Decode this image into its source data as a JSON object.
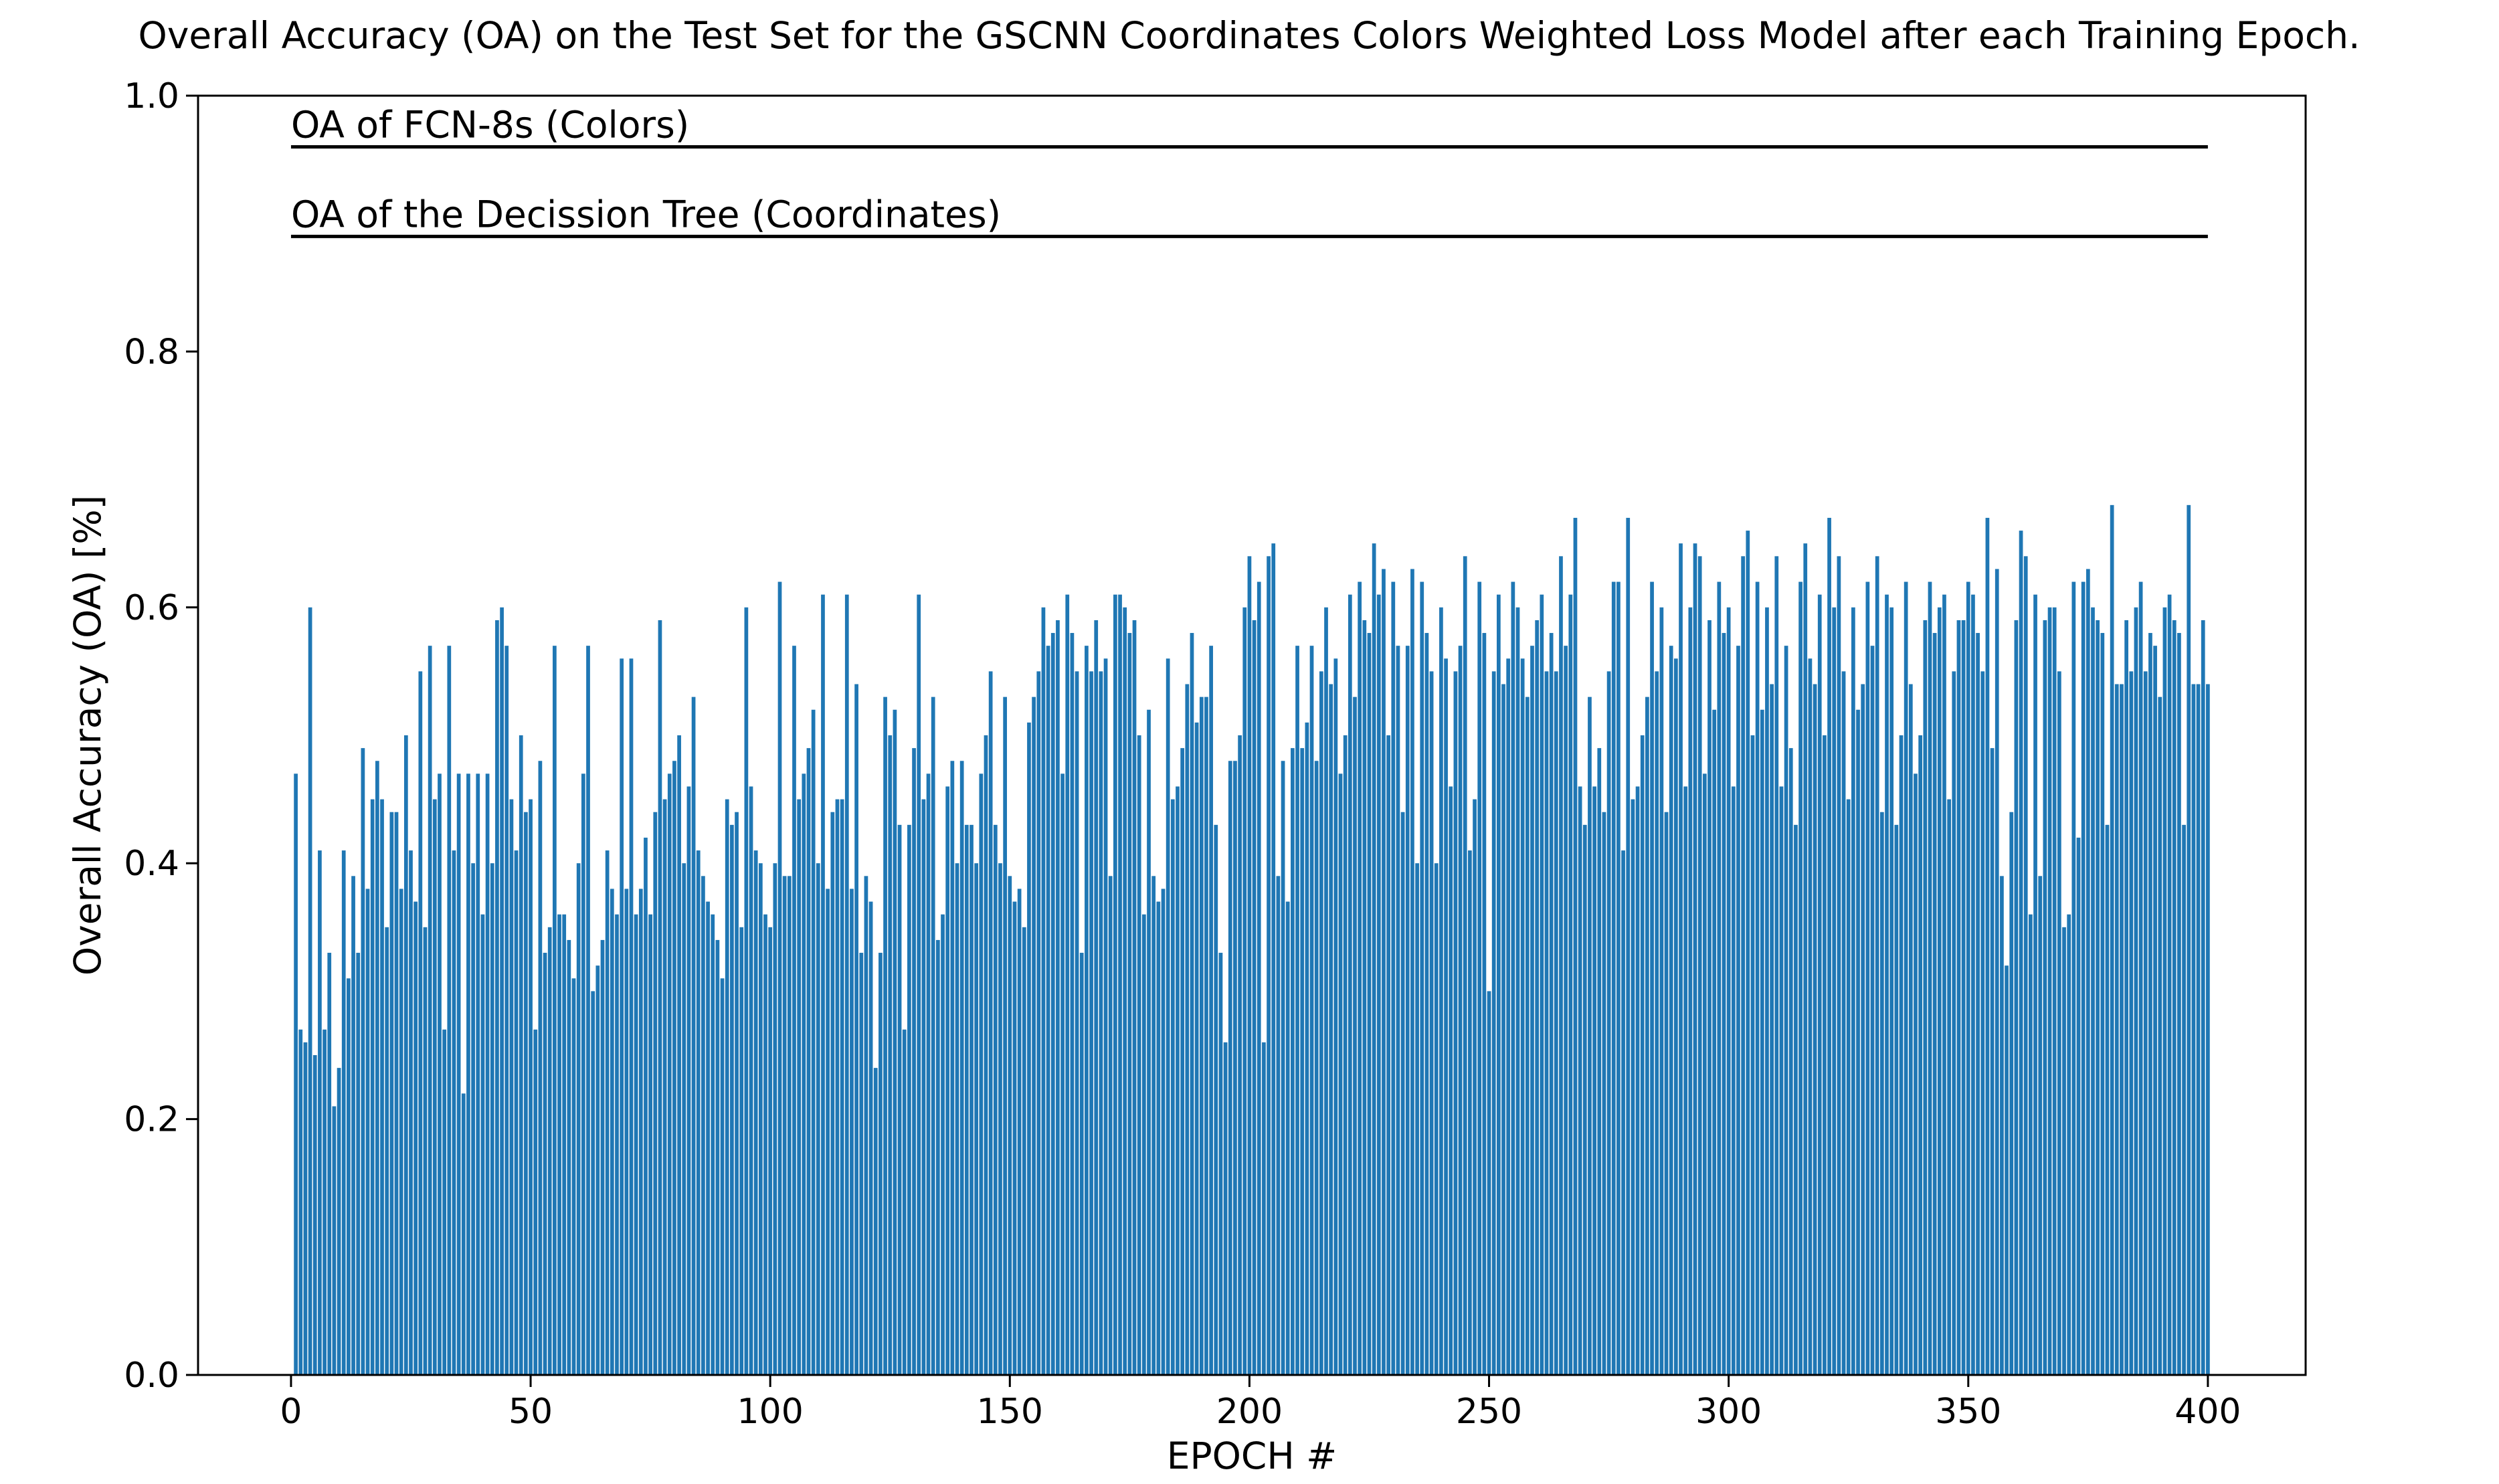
{
  "chart_data": {
    "type": "bar",
    "title": "Overall Accuracy (OA) on the Test Set for the GSCNN Coordinates Colors Weighted Loss Model after each Training Epoch.",
    "xlabel": "EPOCH #",
    "ylabel": "Overall Accuracy (OA) [%]",
    "color": "#1f77b4",
    "xlim": [
      -19.4,
      420.4
    ],
    "xticks": [
      0,
      50,
      100,
      150,
      200,
      250,
      300,
      350,
      400
    ],
    "ylim": [
      0,
      1
    ],
    "yticks": [
      {
        "value": 0,
        "label": "0.0"
      },
      0.2,
      0.4,
      0.6,
      0.8,
      {
        "value": 1,
        "label": "1.0"
      }
    ],
    "hlines": [
      {
        "y": 0.96,
        "xmin": 0,
        "xmax": 400,
        "label": "OA of FCN-8s (Colors)"
      },
      {
        "y": 0.89,
        "xmin": 0,
        "xmax": 400,
        "label": "OA of the Decission Tree (Coordinates)"
      }
    ],
    "x": [
      1,
      2,
      3,
      4,
      5,
      6,
      7,
      8,
      9,
      10,
      11,
      12,
      13,
      14,
      15,
      16,
      17,
      18,
      19,
      20,
      21,
      22,
      23,
      24,
      25,
      26,
      27,
      28,
      29,
      30,
      31,
      32,
      33,
      34,
      35,
      36,
      37,
      38,
      39,
      40,
      41,
      42,
      43,
      44,
      45,
      46,
      47,
      48,
      49,
      50,
      51,
      52,
      53,
      54,
      55,
      56,
      57,
      58,
      59,
      60,
      61,
      62,
      63,
      64,
      65,
      66,
      67,
      68,
      69,
      70,
      71,
      72,
      73,
      74,
      75,
      76,
      77,
      78,
      79,
      80,
      81,
      82,
      83,
      84,
      85,
      86,
      87,
      88,
      89,
      90,
      91,
      92,
      93,
      94,
      95,
      96,
      97,
      98,
      99,
      100,
      101,
      102,
      103,
      104,
      105,
      106,
      107,
      108,
      109,
      110,
      111,
      112,
      113,
      114,
      115,
      116,
      117,
      118,
      119,
      120,
      121,
      122,
      123,
      124,
      125,
      126,
      127,
      128,
      129,
      130,
      131,
      132,
      133,
      134,
      135,
      136,
      137,
      138,
      139,
      140,
      141,
      142,
      143,
      144,
      145,
      146,
      147,
      148,
      149,
      150,
      151,
      152,
      153,
      154,
      155,
      156,
      157,
      158,
      159,
      160,
      161,
      162,
      163,
      164,
      165,
      166,
      167,
      168,
      169,
      170,
      171,
      172,
      173,
      174,
      175,
      176,
      177,
      178,
      179,
      180,
      181,
      182,
      183,
      184,
      185,
      186,
      187,
      188,
      189,
      190,
      191,
      192,
      193,
      194,
      195,
      196,
      197,
      198,
      199,
      200,
      201,
      202,
      203,
      204,
      205,
      206,
      207,
      208,
      209,
      210,
      211,
      212,
      213,
      214,
      215,
      216,
      217,
      218,
      219,
      220,
      221,
      222,
      223,
      224,
      225,
      226,
      227,
      228,
      229,
      230,
      231,
      232,
      233,
      234,
      235,
      236,
      237,
      238,
      239,
      240,
      241,
      242,
      243,
      244,
      245,
      246,
      247,
      248,
      249,
      250,
      251,
      252,
      253,
      254,
      255,
      256,
      257,
      258,
      259,
      260,
      261,
      262,
      263,
      264,
      265,
      266,
      267,
      268,
      269,
      270,
      271,
      272,
      273,
      274,
      275,
      276,
      277,
      278,
      279,
      280,
      281,
      282,
      283,
      284,
      285,
      286,
      287,
      288,
      289,
      290,
      291,
      292,
      293,
      294,
      295,
      296,
      297,
      298,
      299,
      300,
      301,
      302,
      303,
      304,
      305,
      306,
      307,
      308,
      309,
      310,
      311,
      312,
      313,
      314,
      315,
      316,
      317,
      318,
      319,
      320,
      321,
      322,
      323,
      324,
      325,
      326,
      327,
      328,
      329,
      330,
      331,
      332,
      333,
      334,
      335,
      336,
      337,
      338,
      339,
      340,
      341,
      342,
      343,
      344,
      345,
      346,
      347,
      348,
      349,
      350,
      351,
      352,
      353,
      354,
      355,
      356,
      357,
      358,
      359,
      360,
      361,
      362,
      363,
      364,
      365,
      366,
      367,
      368,
      369,
      370,
      371,
      372,
      373,
      374,
      375,
      376,
      377,
      378,
      379,
      380,
      381,
      382,
      383,
      384,
      385,
      386,
      387,
      388,
      389,
      390,
      391,
      392,
      393,
      394,
      395,
      396,
      397,
      398,
      399,
      400
    ],
    "values": [
      0.47,
      0.27,
      0.26,
      0.6,
      0.25,
      0.41,
      0.27,
      0.33,
      0.21,
      0.24,
      0.41,
      0.31,
      0.39,
      0.33,
      0.49,
      0.38,
      0.45,
      0.48,
      0.45,
      0.35,
      0.44,
      0.44,
      0.38,
      0.5,
      0.41,
      0.37,
      0.55,
      0.35,
      0.57,
      0.45,
      0.47,
      0.27,
      0.57,
      0.41,
      0.47,
      0.22,
      0.47,
      0.4,
      0.47,
      0.36,
      0.47,
      0.4,
      0.59,
      0.6,
      0.57,
      0.45,
      0.41,
      0.5,
      0.44,
      0.45,
      0.27,
      0.48,
      0.33,
      0.35,
      0.57,
      0.36,
      0.36,
      0.34,
      0.31,
      0.4,
      0.47,
      0.57,
      0.3,
      0.32,
      0.34,
      0.41,
      0.38,
      0.36,
      0.56,
      0.38,
      0.56,
      0.36,
      0.38,
      0.42,
      0.36,
      0.44,
      0.59,
      0.45,
      0.47,
      0.48,
      0.5,
      0.4,
      0.46,
      0.53,
      0.41,
      0.39,
      0.37,
      0.36,
      0.34,
      0.31,
      0.45,
      0.43,
      0.44,
      0.35,
      0.6,
      0.46,
      0.41,
      0.4,
      0.36,
      0.35,
      0.4,
      0.62,
      0.39,
      0.39,
      0.57,
      0.45,
      0.47,
      0.49,
      0.52,
      0.4,
      0.61,
      0.38,
      0.44,
      0.45,
      0.45,
      0.61,
      0.38,
      0.54,
      0.33,
      0.39,
      0.37,
      0.24,
      0.33,
      0.53,
      0.5,
      0.52,
      0.43,
      0.27,
      0.43,
      0.49,
      0.61,
      0.45,
      0.47,
      0.53,
      0.34,
      0.36,
      0.46,
      0.48,
      0.4,
      0.48,
      0.43,
      0.43,
      0.4,
      0.47,
      0.5,
      0.55,
      0.43,
      0.4,
      0.53,
      0.39,
      0.37,
      0.38,
      0.35,
      0.51,
      0.53,
      0.55,
      0.6,
      0.57,
      0.58,
      0.59,
      0.47,
      0.61,
      0.58,
      0.55,
      0.33,
      0.57,
      0.55,
      0.59,
      0.55,
      0.56,
      0.39,
      0.61,
      0.61,
      0.6,
      0.58,
      0.59,
      0.5,
      0.36,
      0.52,
      0.39,
      0.37,
      0.38,
      0.56,
      0.45,
      0.46,
      0.49,
      0.54,
      0.58,
      0.51,
      0.53,
      0.53,
      0.57,
      0.43,
      0.33,
      0.26,
      0.48,
      0.48,
      0.5,
      0.6,
      0.64,
      0.59,
      0.62,
      0.26,
      0.64,
      0.65,
      0.39,
      0.48,
      0.37,
      0.49,
      0.57,
      0.49,
      0.51,
      0.57,
      0.48,
      0.55,
      0.6,
      0.54,
      0.56,
      0.47,
      0.5,
      0.61,
      0.53,
      0.62,
      0.59,
      0.58,
      0.65,
      0.61,
      0.63,
      0.5,
      0.62,
      0.57,
      0.44,
      0.57,
      0.63,
      0.4,
      0.62,
      0.58,
      0.55,
      0.4,
      0.6,
      0.56,
      0.46,
      0.55,
      0.57,
      0.64,
      0.41,
      0.45,
      0.62,
      0.58,
      0.3,
      0.55,
      0.61,
      0.54,
      0.56,
      0.62,
      0.6,
      0.56,
      0.53,
      0.57,
      0.59,
      0.61,
      0.55,
      0.58,
      0.55,
      0.64,
      0.57,
      0.61,
      0.67,
      0.46,
      0.43,
      0.53,
      0.46,
      0.49,
      0.44,
      0.55,
      0.62,
      0.62,
      0.41,
      0.67,
      0.45,
      0.46,
      0.5,
      0.53,
      0.62,
      0.55,
      0.6,
      0.44,
      0.57,
      0.56,
      0.65,
      0.46,
      0.6,
      0.65,
      0.64,
      0.47,
      0.59,
      0.52,
      0.62,
      0.58,
      0.6,
      0.46,
      0.57,
      0.64,
      0.66,
      0.5,
      0.62,
      0.52,
      0.6,
      0.54,
      0.64,
      0.46,
      0.57,
      0.49,
      0.43,
      0.62,
      0.65,
      0.56,
      0.54,
      0.61,
      0.5,
      0.67,
      0.6,
      0.64,
      0.55,
      0.45,
      0.6,
      0.52,
      0.54,
      0.62,
      0.57,
      0.64,
      0.44,
      0.61,
      0.6,
      0.43,
      0.5,
      0.62,
      0.54,
      0.47,
      0.5,
      0.59,
      0.62,
      0.58,
      0.6,
      0.61,
      0.45,
      0.55,
      0.59,
      0.59,
      0.62,
      0.61,
      0.58,
      0.55,
      0.67,
      0.49,
      0.63,
      0.39,
      0.32,
      0.44,
      0.59,
      0.66,
      0.64,
      0.36,
      0.61,
      0.39,
      0.59,
      0.6,
      0.6,
      0.55,
      0.35,
      0.36,
      0.62,
      0.42,
      0.62,
      0.63,
      0.6,
      0.59,
      0.58,
      0.43,
      0.68,
      0.54,
      0.54,
      0.59,
      0.55,
      0.6,
      0.62,
      0.55,
      0.58,
      0.57,
      0.53,
      0.6,
      0.61,
      0.59,
      0.58,
      0.43,
      0.68,
      0.54,
      0.54,
      0.59,
      0.54
    ]
  }
}
